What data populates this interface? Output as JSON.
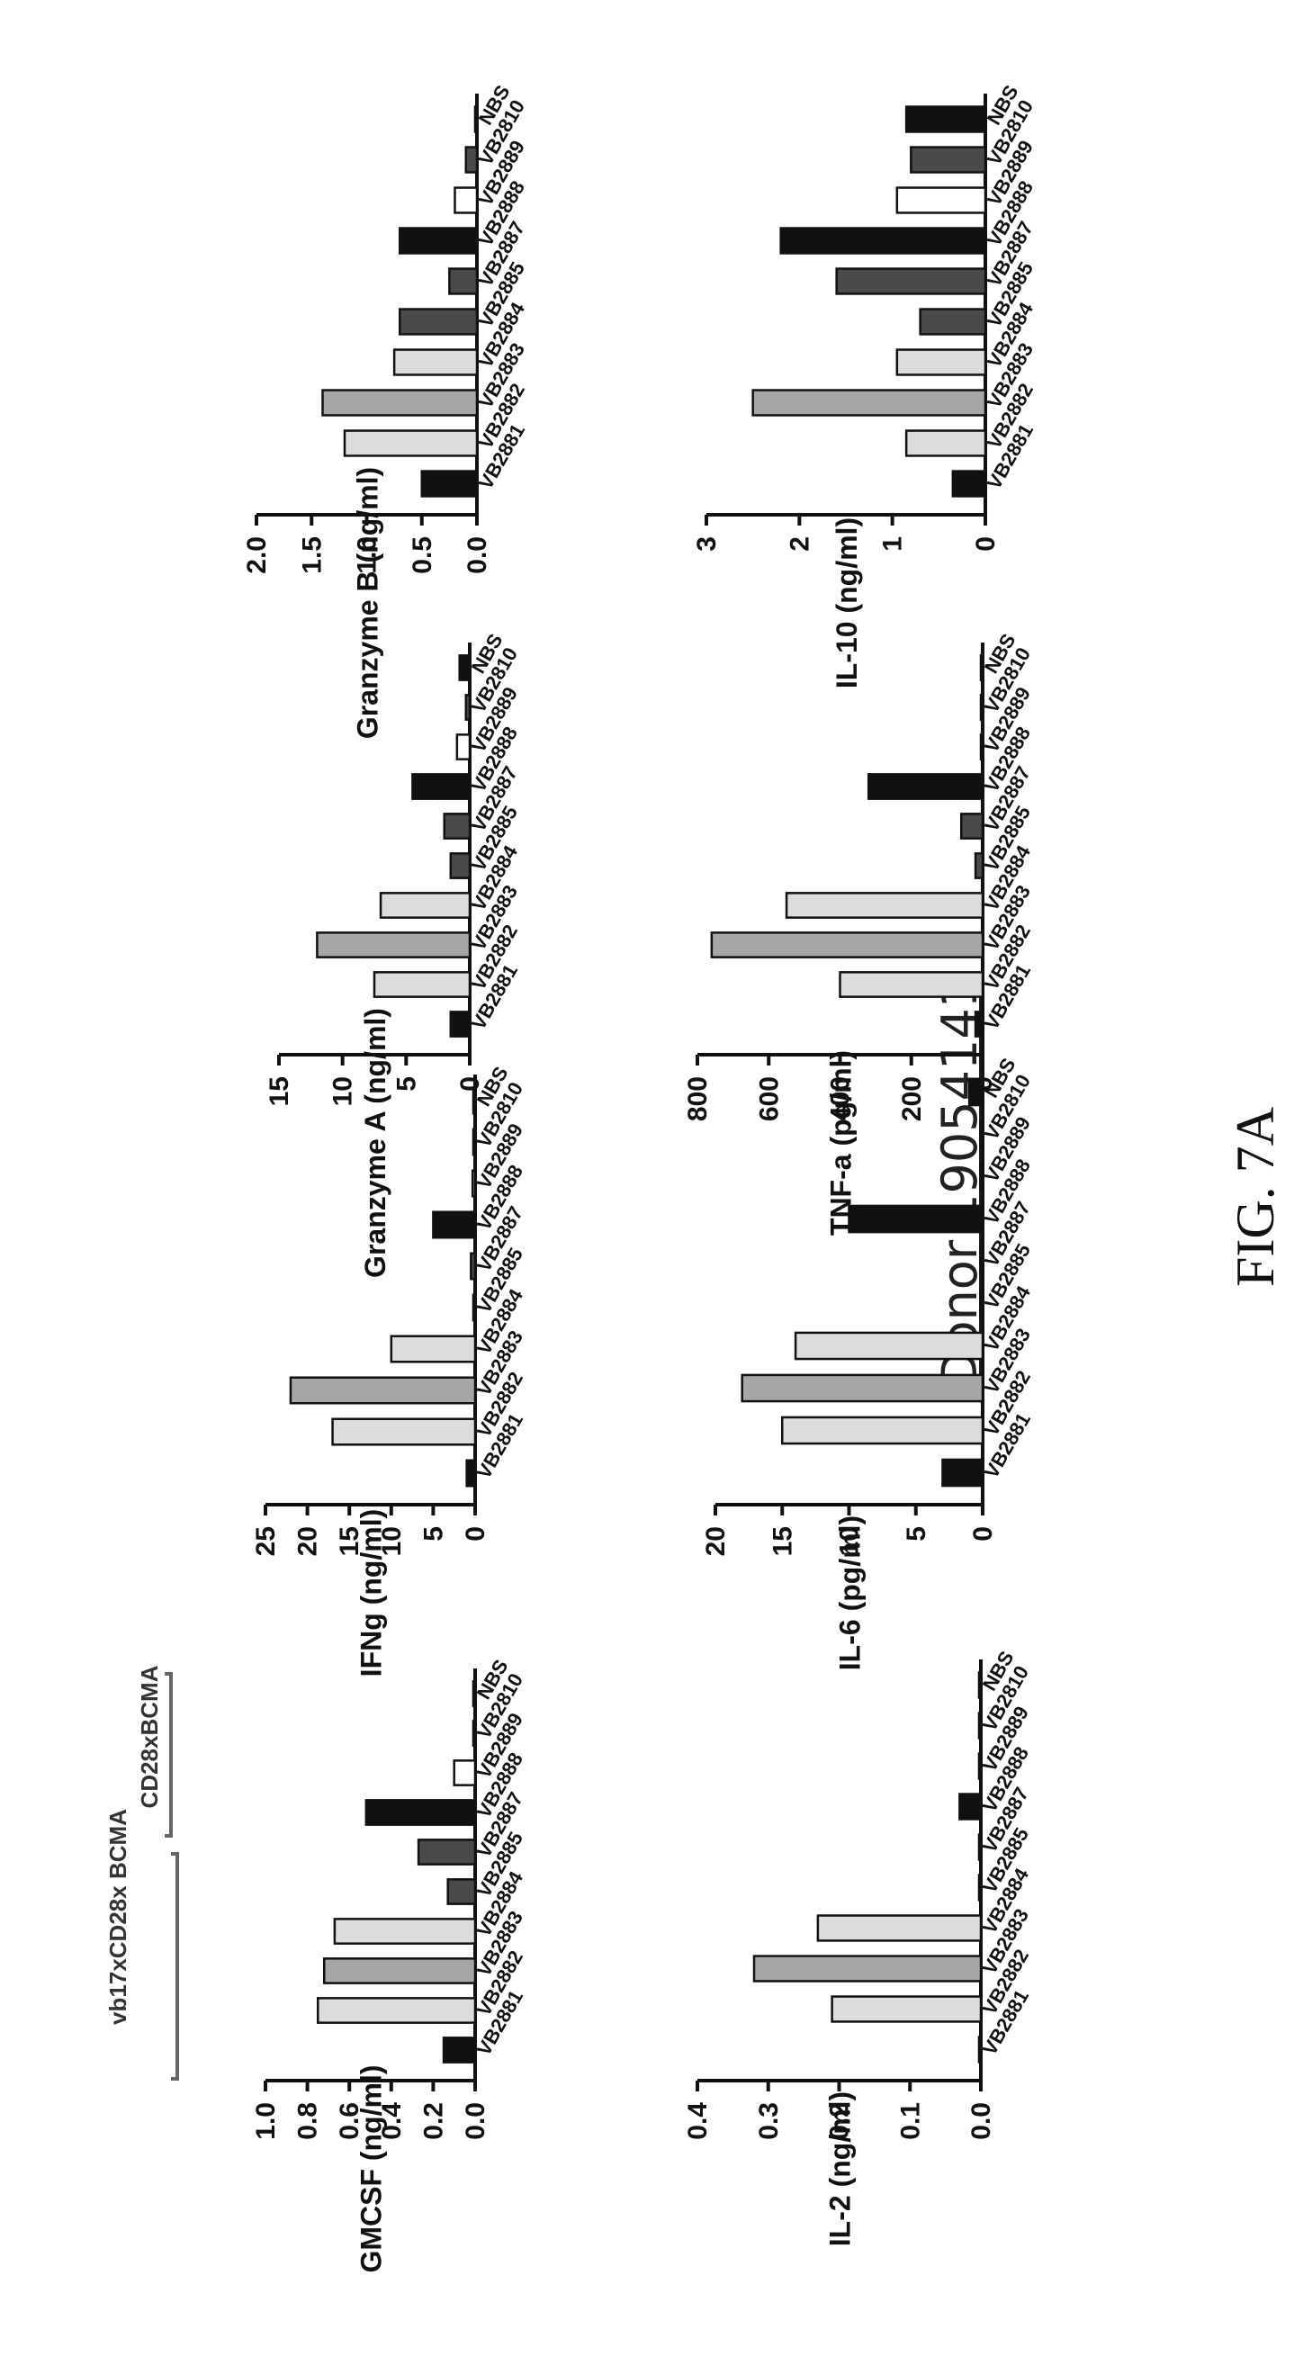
{
  "figure": {
    "title": "Donor 19054141",
    "label": "FIG. 7A",
    "legend_groups": [
      "vb17xCD28x BCMA",
      "CD28xBCMA"
    ]
  },
  "colors": {
    "black": "#111111",
    "lightgray": "#dcdcdc",
    "gray": "#a6a6a6",
    "darkgray": "#4a4a4a",
    "white": "#ffffff"
  },
  "bar_colors": [
    "black",
    "lightgray",
    "gray",
    "lightgray",
    "darkgray",
    "darkgray",
    "black",
    "white",
    "darkgray",
    "black"
  ],
  "chart_data": [
    {
      "id": "gmcsf",
      "type": "bar",
      "ylabel": "GMCSF (ng/ml)",
      "ylim": [
        0,
        1.0
      ],
      "yticks": [
        "1.0",
        "0.8",
        "0.6",
        "0.4",
        "0.2",
        "0.0"
      ],
      "ytick_values": [
        1.0,
        0.8,
        0.6,
        0.4,
        0.2,
        0.0
      ],
      "categories": [
        "VB2881",
        "VB2882",
        "VB2883",
        "VB2884",
        "VB2885",
        "VB2887",
        "VB2888",
        "VB2889",
        "VB2810",
        "NBS"
      ],
      "values": [
        0.15,
        0.75,
        0.72,
        0.67,
        0.13,
        0.27,
        0.52,
        0.1,
        0.0,
        0.0
      ]
    },
    {
      "id": "ifng",
      "type": "bar",
      "ylabel": "IFNg (ng/ml)",
      "ylim": [
        0,
        25
      ],
      "yticks": [
        "25",
        "20",
        "15",
        "10",
        "5",
        "0"
      ],
      "ytick_values": [
        25,
        20,
        15,
        10,
        5,
        0
      ],
      "categories": [
        "VB2881",
        "VB2882",
        "VB2883",
        "VB2884",
        "VB2885",
        "VB2887",
        "VB2888",
        "VB2889",
        "VB2810",
        "NBS"
      ],
      "values": [
        1.0,
        17.0,
        22.0,
        10.0,
        0.0,
        0.5,
        5.0,
        0.3,
        0.0,
        0.0
      ]
    },
    {
      "id": "granzymea",
      "type": "bar",
      "ylabel": "Granzyme A (ng/ml)",
      "ylim": [
        0,
        15
      ],
      "yticks": [
        "15",
        "10",
        "5",
        "0"
      ],
      "ytick_values": [
        15,
        10,
        5,
        0
      ],
      "categories": [
        "VB2881",
        "VB2882",
        "VB2883",
        "VB2884",
        "VB2885",
        "VB2887",
        "VB2888",
        "VB2889",
        "VB2810",
        "NBS"
      ],
      "values": [
        1.5,
        7.5,
        12.0,
        7.0,
        1.5,
        2.0,
        4.5,
        1.0,
        0.3,
        0.8
      ]
    },
    {
      "id": "granzymeb",
      "type": "bar",
      "ylabel": "Granzyme B (ng/ml)",
      "ylim": [
        0,
        2.0
      ],
      "yticks": [
        "2.0",
        "1.5",
        "1.0",
        "0.5",
        "0.0"
      ],
      "ytick_values": [
        2.0,
        1.5,
        1.0,
        0.5,
        0.0
      ],
      "categories": [
        "VB2881",
        "VB2882",
        "VB2883",
        "VB2884",
        "VB2885",
        "VB2887",
        "VB2888",
        "VB2889",
        "VB2810",
        "NBS"
      ],
      "values": [
        0.5,
        1.2,
        1.4,
        0.75,
        0.7,
        0.25,
        0.7,
        0.2,
        0.1,
        0.0
      ]
    },
    {
      "id": "il2",
      "type": "bar",
      "ylabel": "IL-2 (ng/ml)",
      "ylim": [
        0,
        0.4
      ],
      "yticks": [
        "0.4",
        "0.3",
        "0.2",
        "0.1",
        "0.0"
      ],
      "ytick_values": [
        0.4,
        0.3,
        0.2,
        0.1,
        0.0
      ],
      "categories": [
        "VB2881",
        "VB2882",
        "VB2883",
        "VB2884",
        "VB2885",
        "VB2887",
        "VB2888",
        "VB2889",
        "VB2810",
        "NBS"
      ],
      "values": [
        0.0,
        0.21,
        0.32,
        0.23,
        0.0,
        0.0,
        0.03,
        0.0,
        0.0,
        0.0
      ]
    },
    {
      "id": "il6",
      "type": "bar",
      "ylabel": "IL-6 (pg/ml)",
      "ylim": [
        0,
        20
      ],
      "yticks": [
        "20",
        "15",
        "10",
        "5",
        "0"
      ],
      "ytick_values": [
        20,
        15,
        10,
        5,
        0
      ],
      "categories": [
        "VB2881",
        "VB2882",
        "VB2883",
        "VB2884",
        "VB2885",
        "VB2887",
        "VB2888",
        "VB2889",
        "VB2810",
        "NBS"
      ],
      "values": [
        3.0,
        15.0,
        18.0,
        14.0,
        0.0,
        0.0,
        10.0,
        0.0,
        0.0,
        1.0
      ]
    },
    {
      "id": "tnfa",
      "type": "bar",
      "ylabel": "TNF-a (pg/ml)",
      "ylim": [
        0,
        800
      ],
      "yticks": [
        "800",
        "600",
        "400",
        "200",
        "0"
      ],
      "ytick_values": [
        800,
        600,
        400,
        200,
        0
      ],
      "categories": [
        "VB2881",
        "VB2882",
        "VB2883",
        "VB2884",
        "VB2885",
        "VB2887",
        "VB2888",
        "VB2889",
        "VB2810",
        "NBS"
      ],
      "values": [
        20,
        400,
        760,
        550,
        20,
        60,
        320,
        0,
        0,
        0
      ]
    },
    {
      "id": "il10",
      "type": "bar",
      "ylabel": "IL-10 (ng/ml)",
      "ylim": [
        0,
        3
      ],
      "yticks": [
        "3",
        "2",
        "1",
        "0"
      ],
      "ytick_values": [
        3,
        2,
        1,
        0
      ],
      "categories": [
        "VB2881",
        "VB2882",
        "VB2883",
        "VB2884",
        "VB2885",
        "VB2887",
        "VB2888",
        "VB2889",
        "VB2810",
        "NBS"
      ],
      "values": [
        0.35,
        0.85,
        2.5,
        0.95,
        0.7,
        1.6,
        2.2,
        0.95,
        0.8,
        0.85
      ]
    }
  ]
}
